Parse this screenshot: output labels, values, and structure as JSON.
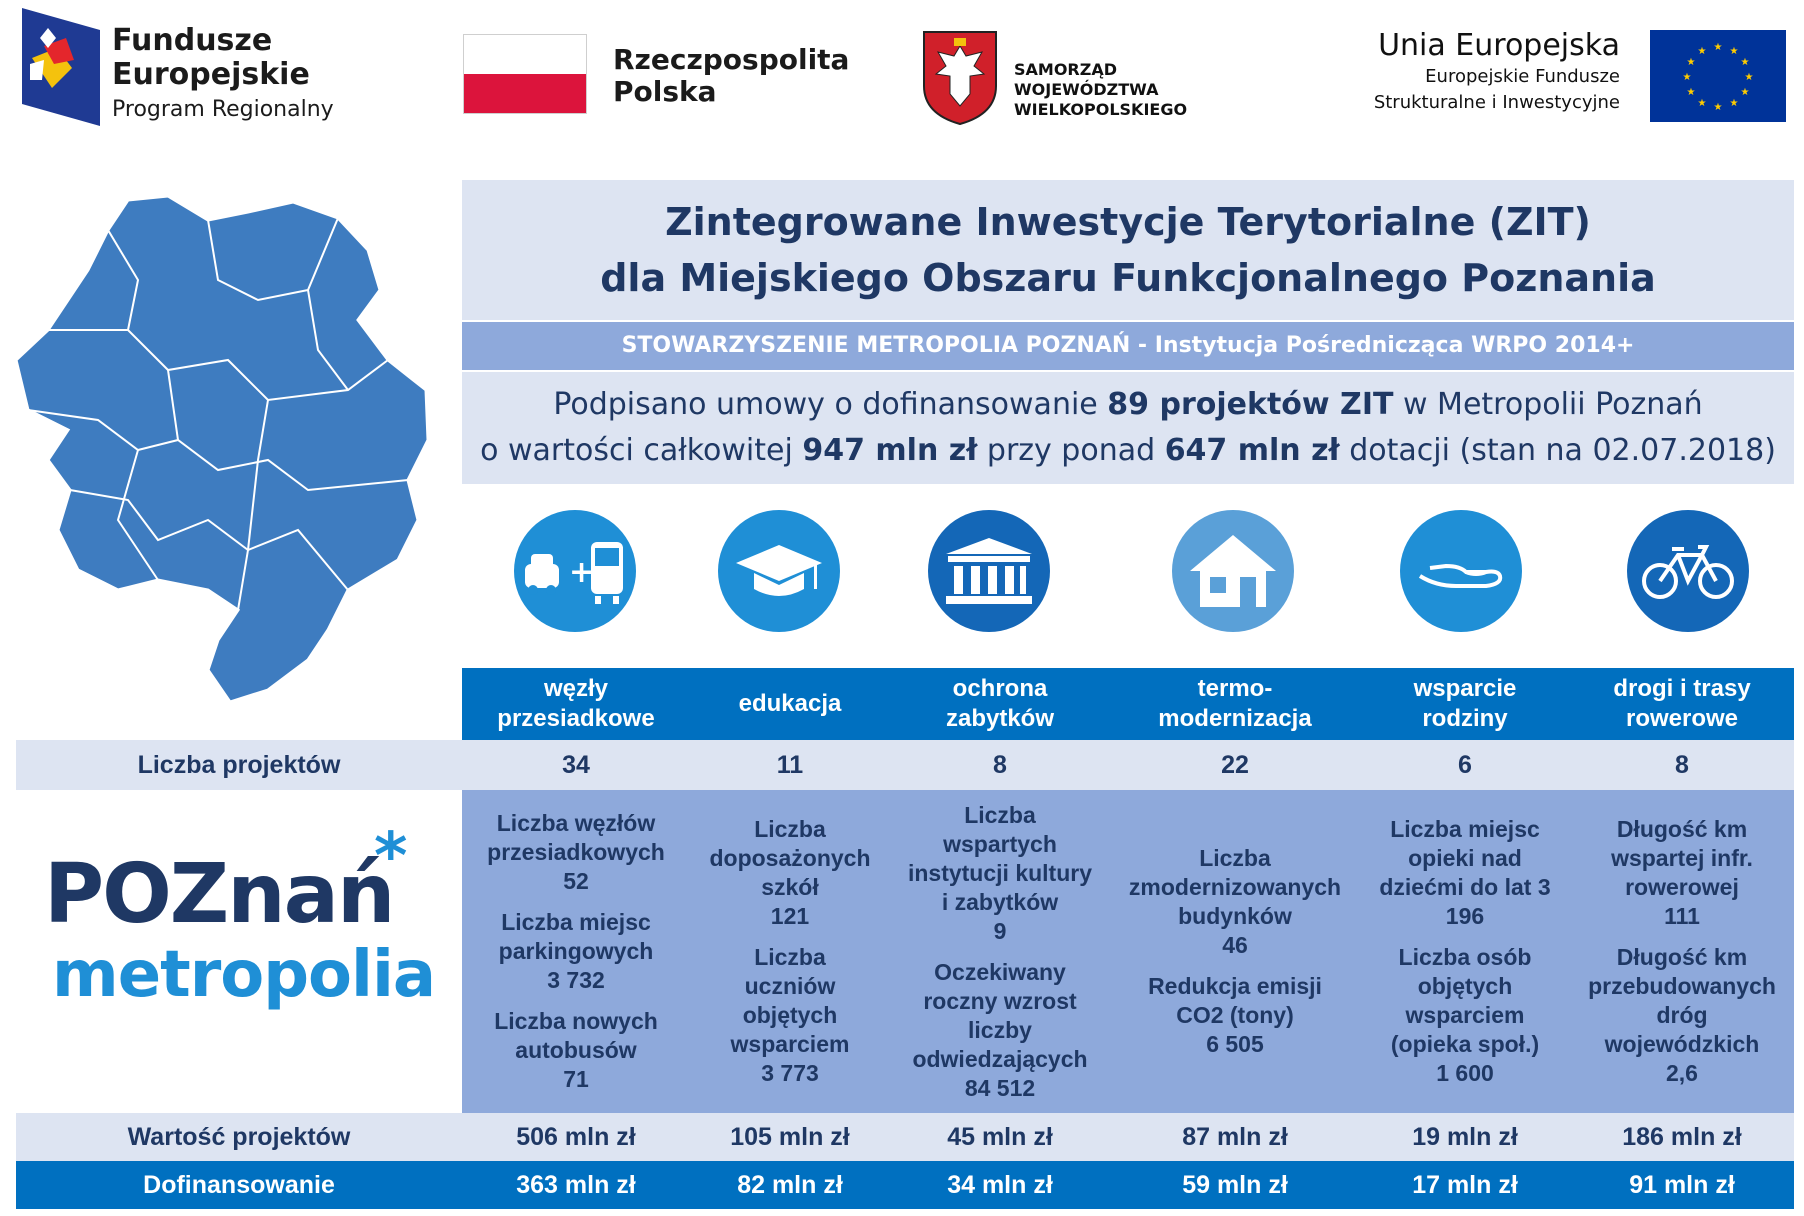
{
  "logos": {
    "fe": {
      "line1": "Fundusze",
      "line2": "Europejskie",
      "line3": "Program Regionalny"
    },
    "rp": {
      "line1": "Rzeczpospolita",
      "line2": "Polska"
    },
    "samorzad": {
      "line1": "SAMORZĄD WOJEWÓDZTWA",
      "line2": "WIELKOPOLSKIEGO"
    },
    "ue": {
      "line1": "Unia Europejska",
      "line2": "Europejskie Fundusze",
      "line3": "Strukturalne i Inwestycyjne"
    }
  },
  "header": {
    "title_line1": "Zintegrowane Inwestycje Terytorialne (ZIT)",
    "title_line2": "dla Miejskiego Obszaru Funkcjonalnego Poznania",
    "band": "STOWARZYSZENIE METROPOLIA POZNAŃ - Instytucja Pośrednicząca WRPO 2014+",
    "summary": {
      "l1_a": "Podpisano umowy o dofinansowanie ",
      "l1_b": "89 projektów ZIT",
      "l1_c": " w Metropolii Poznań",
      "l2_a": "o wartości całkowitej ",
      "l2_b": "947 mln zł",
      "l2_c": " przy ponad ",
      "l2_d": "647 mln zł",
      "l2_e": " dotacji (stan na 02.07.2018)"
    }
  },
  "metropolia_logo": {
    "word1": "POZnań",
    "word2": "metropolia"
  },
  "colors": {
    "dark_blue": "#1f3864",
    "blue": "#0070c0",
    "mid_blue": "#8ea9db",
    "light_blue": "#dde4f2",
    "map_blue": "#3e7cc0"
  },
  "categories": [
    {
      "icon": "bus-car-icon",
      "l1": "węzły",
      "l2": "przesiadkowe"
    },
    {
      "icon": "graduation-cap-icon",
      "l1": "edukacja",
      "l2": ""
    },
    {
      "icon": "building-columns-icon",
      "l1": "ochrona",
      "l2": "zabytków"
    },
    {
      "icon": "house-icon",
      "l1": "termo-",
      "l2": "modernizacja"
    },
    {
      "icon": "hand-icon",
      "l1": "wsparcie",
      "l2": "rodziny"
    },
    {
      "icon": "bicycle-icon",
      "l1": "drogi i trasy",
      "l2": "rowerowe"
    }
  ],
  "rows": {
    "liczba_label": "Liczba projektów",
    "liczba": [
      "34",
      "11",
      "8",
      "22",
      "6",
      "8"
    ],
    "wartosc_label": "Wartość projektów",
    "wartosc": [
      "506 mln zł",
      "105 mln zł",
      "45 mln zł",
      "87 mln zł",
      "19 mln zł",
      "186 mln zł"
    ],
    "dof_label": "Dofinansowanie",
    "dof": [
      "363 mln zł",
      "82 mln zł",
      "34 mln zł",
      "59 mln zł",
      "17 mln zł",
      "91 mln zł"
    ]
  },
  "indicators": [
    [
      [
        "Liczba węzłów",
        "przesiadkowych",
        "52"
      ],
      [
        "Liczba miejsc",
        "parkingowych",
        "3 732"
      ],
      [
        "Liczba nowych",
        "autobusów",
        "71"
      ]
    ],
    [
      [
        "Liczba",
        "doposażonych",
        "szkół",
        "121"
      ],
      [
        "Liczba",
        "uczniów",
        "objętych",
        "wsparciem",
        "3 773"
      ]
    ],
    [
      [
        "Liczba",
        "wspartych",
        "instytucji kultury",
        "i zabytków",
        "9"
      ],
      [
        "Oczekiwany",
        "roczny wzrost",
        "liczby",
        "odwiedzających",
        "84 512"
      ]
    ],
    [
      [
        "Liczba",
        "zmodernizowanych",
        "budynków",
        "46"
      ],
      [
        "Redukcja emisji",
        "CO2 (tony)",
        "6 505"
      ]
    ],
    [
      [
        "Liczba miejsc",
        "opieki nad",
        "dziećmi do lat 3",
        "196"
      ],
      [
        "Liczba osób",
        "objętych",
        "wsparciem",
        "(opieka społ.)",
        "1 600"
      ]
    ],
    [
      [
        "Długość km",
        "wspartej infr.",
        "rowerowej",
        "111"
      ],
      [
        "Długość km",
        "przebudowanych",
        "dróg",
        "wojewódzkich",
        "2,6"
      ]
    ]
  ]
}
